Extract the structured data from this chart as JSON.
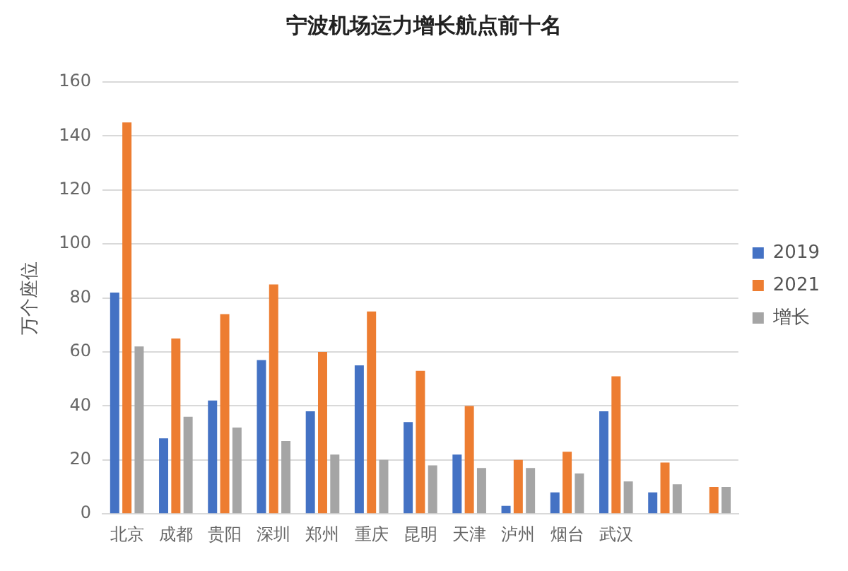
{
  "chart_data": {
    "type": "bar",
    "title": "宁波机场运力增长航点前十名",
    "ylabel": "万个座位",
    "categories": [
      "北京",
      "成都",
      "贵阳",
      "深圳",
      "郑州",
      "重庆",
      "昆明",
      "天津",
      "泸州",
      "烟台",
      "武汉",
      null,
      null
    ],
    "series": [
      {
        "name": "2019",
        "color": "#4472c4",
        "values": [
          82,
          28,
          42,
          57,
          38,
          55,
          34,
          22,
          3,
          8,
          38,
          8,
          null
        ]
      },
      {
        "name": "2021",
        "color": "#ed7d31",
        "values": [
          145,
          65,
          74,
          85,
          60,
          75,
          53,
          40,
          20,
          23,
          51,
          19,
          10
        ]
      },
      {
        "name": "增长",
        "color": "#a5a5a5",
        "values": [
          62,
          36,
          32,
          27,
          22,
          20,
          18,
          17,
          17,
          15,
          12,
          11,
          10
        ]
      }
    ],
    "ylim": [
      0,
      160
    ],
    "yticks": [
      0,
      20,
      40,
      60,
      80,
      100,
      120,
      140,
      160
    ],
    "grid": "y",
    "legend": "right"
  }
}
